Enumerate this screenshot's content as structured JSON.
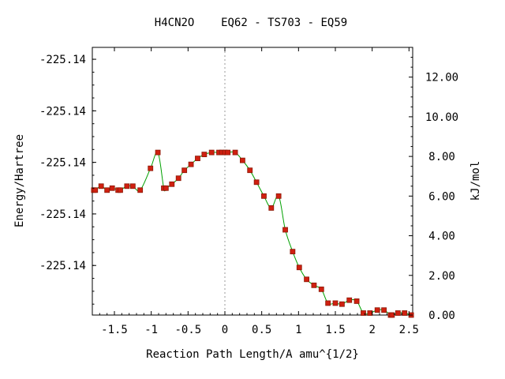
{
  "chart_data": {
    "type": "line",
    "title": "H4CN2O    EQ62 - TS703 - EQ59",
    "xlabel": "Reaction Path Length/A amu^{1/2}",
    "ylabel_left": "Energy/Hartree",
    "ylabel_right": "kJ/mol",
    "xlim": [
      -1.8,
      2.55
    ],
    "ylim_kjmol": [
      0,
      13.5
    ],
    "x_ticks": [
      {
        "value": -1.5,
        "label": "-1.5"
      },
      {
        "value": -1,
        "label": "-1"
      },
      {
        "value": -0.5,
        "label": "-0.5"
      },
      {
        "value": 0,
        "label": "0"
      },
      {
        "value": 0.5,
        "label": "0.5"
      },
      {
        "value": 1,
        "label": "1"
      },
      {
        "value": 1.5,
        "label": "1.5"
      },
      {
        "value": 2,
        "label": "2"
      },
      {
        "value": 2.5,
        "label": "2.5"
      }
    ],
    "left_ticks": [
      {
        "value": 12.9,
        "label": "-225.14"
      },
      {
        "value": 10.3,
        "label": "-225.14"
      },
      {
        "value": 7.7,
        "label": "-225.14"
      },
      {
        "value": 5.1,
        "label": "-225.14"
      },
      {
        "value": 2.5,
        "label": "-225.14"
      }
    ],
    "right_ticks": [
      {
        "value": 0,
        "label": "0.00"
      },
      {
        "value": 2,
        "label": "2.00"
      },
      {
        "value": 4,
        "label": "4.00"
      },
      {
        "value": 6,
        "label": "6.00"
      },
      {
        "value": 8,
        "label": "8.00"
      },
      {
        "value": 10,
        "label": "10.00"
      },
      {
        "value": 12,
        "label": "12.00"
      }
    ],
    "ts_marker_x": 0,
    "grid": false,
    "colors": {
      "curve": "#00a000",
      "point_fill": "#d02010",
      "point_edge": "#8a1a08",
      "ts_line": "#999999",
      "axis": "#000000"
    },
    "series": [
      {
        "x": [
          -1.78,
          -1.76,
          -1.68,
          -1.6,
          -1.53,
          -1.45,
          -1.42,
          -1.33,
          -1.25,
          -1.15,
          -1.01,
          -0.91,
          -0.83,
          -0.8,
          -0.72,
          -0.63,
          -0.55,
          -0.46,
          -0.37,
          -0.28,
          -0.18,
          -0.08,
          -0.04,
          0.0,
          0.04,
          0.14,
          0.24,
          0.34,
          0.43,
          0.53,
          0.63,
          0.73,
          0.82,
          0.92,
          1.01,
          1.11,
          1.21,
          1.31,
          1.4,
          1.5,
          1.59,
          1.69,
          1.79,
          1.88,
          1.97,
          2.07,
          2.16,
          2.25,
          2.27,
          2.35,
          2.44,
          2.53
        ],
        "y": [
          6.3,
          6.3,
          6.5,
          6.3,
          6.4,
          6.3,
          6.3,
          6.5,
          6.5,
          6.3,
          7.4,
          8.2,
          6.4,
          6.4,
          6.6,
          6.9,
          7.3,
          7.6,
          7.9,
          8.1,
          8.2,
          8.2,
          8.2,
          8.2,
          8.2,
          8.2,
          7.8,
          7.3,
          6.7,
          6.0,
          5.4,
          6.0,
          4.3,
          3.2,
          2.4,
          1.8,
          1.5,
          1.3,
          0.6,
          0.6,
          0.55,
          0.75,
          0.7,
          0.1,
          0.1,
          0.25,
          0.25,
          0.0,
          0.0,
          0.1,
          0.1,
          0.0
        ]
      }
    ]
  }
}
